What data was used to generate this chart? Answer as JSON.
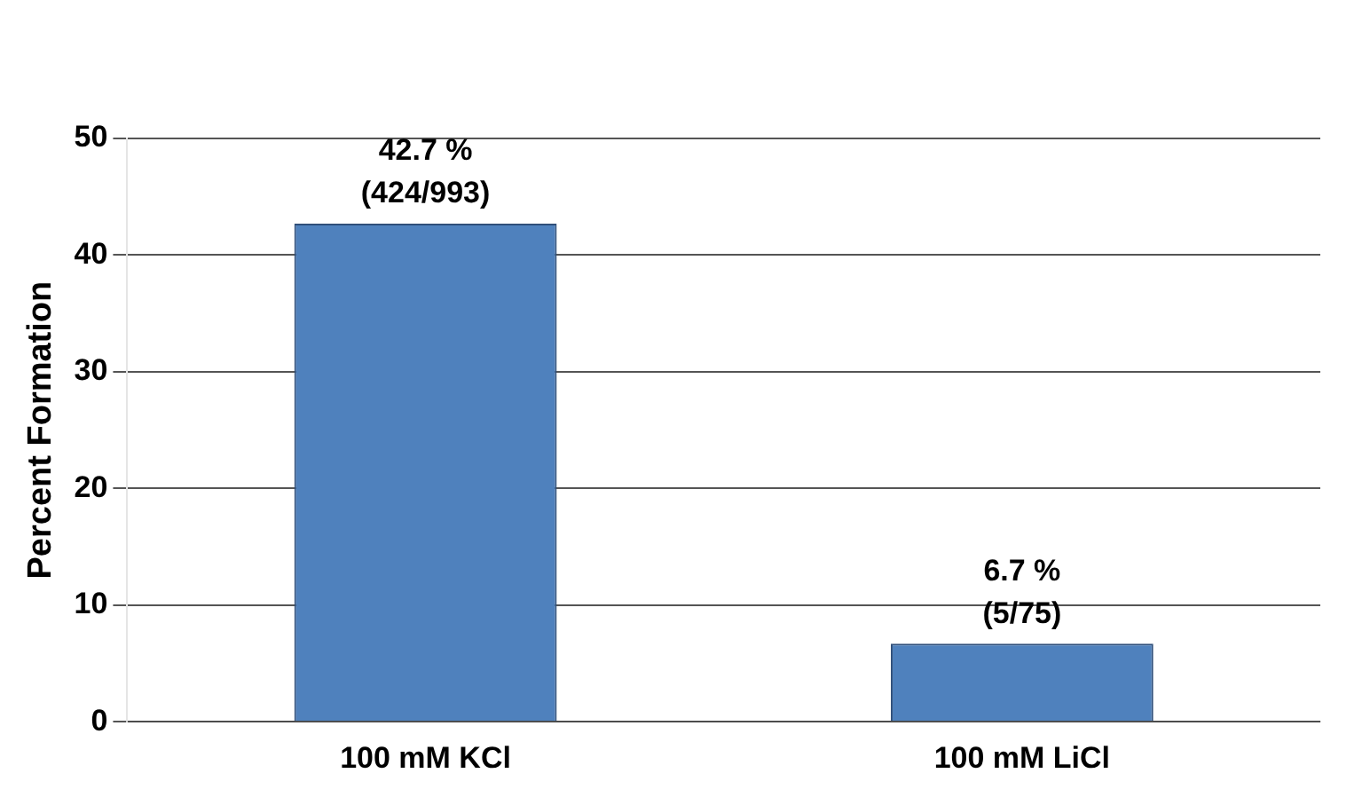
{
  "chart_data": {
    "type": "bar",
    "ylabel": "Percent Formation",
    "categories": [
      "100 mM KCl",
      "100 mM LiCl"
    ],
    "values": [
      42.7,
      6.7
    ],
    "color": "#4f81bd",
    "value_labels": [
      "42.7 %\n(424/993)",
      "6.7 %\n(5/75)"
    ],
    "ylim": [
      0,
      50
    ],
    "yticks": [
      0,
      10,
      20,
      30,
      40,
      50
    ],
    "grid": "y",
    "legend": false
  }
}
